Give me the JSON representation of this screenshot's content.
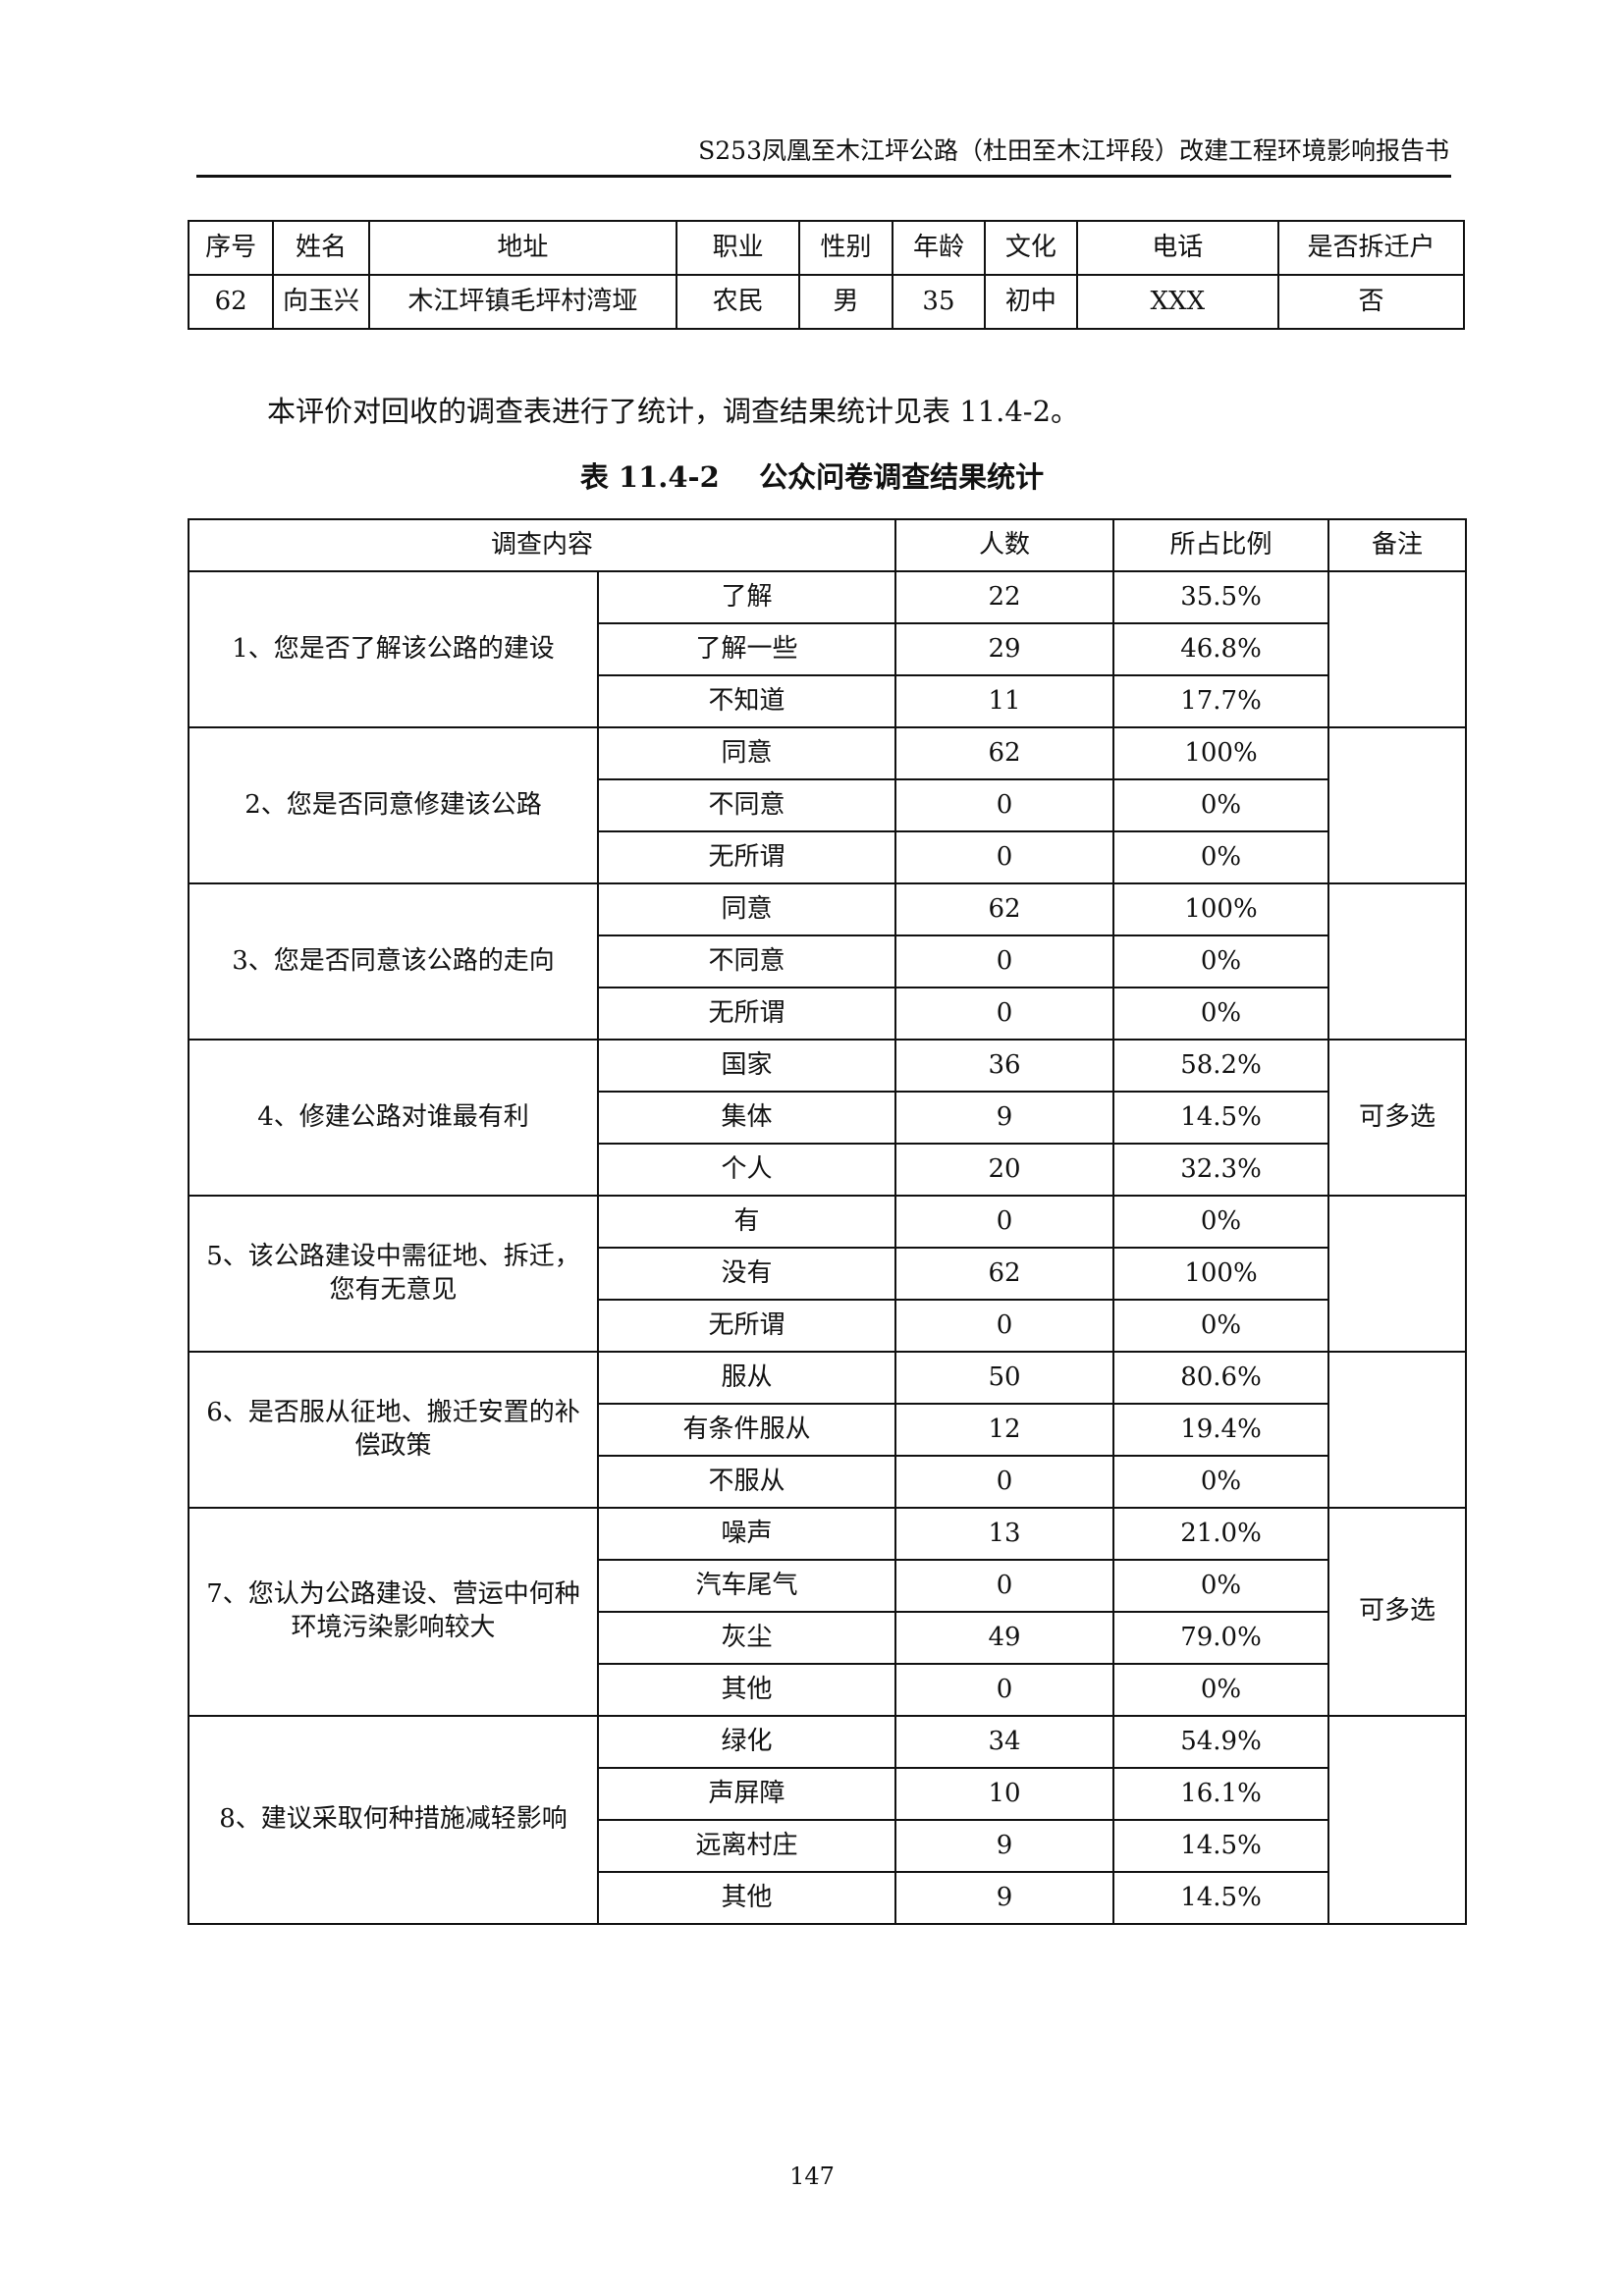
{
  "header": {
    "title": "S253凤凰至木江坪公路（杜田至木江坪段）改建工程环境影响报告书"
  },
  "respondent_table": {
    "columns": [
      "序号",
      "姓名",
      "地址",
      "职业",
      "性别",
      "年龄",
      "文化",
      "电话",
      "是否拆迁户"
    ],
    "rows": [
      [
        "62",
        "向玉兴",
        "木江坪镇毛坪村湾垭",
        "农民",
        "男",
        "35",
        "初中",
        "XXX",
        "否"
      ]
    ]
  },
  "paragraph": "本评价对回收的调查表进行了统计，调查结果统计见表 11.4-2。",
  "caption": "表 11.4-2    公众问卷调查结果统计",
  "survey_table": {
    "columns": [
      "调查内容",
      "人数",
      "所占比例",
      "备注"
    ],
    "questions": [
      {
        "question": "1、您是否了解该公路的建设",
        "note": "",
        "options": [
          [
            "了解",
            "22",
            "35.5%"
          ],
          [
            "了解一些",
            "29",
            "46.8%"
          ],
          [
            "不知道",
            "11",
            "17.7%"
          ]
        ]
      },
      {
        "question": "2、您是否同意修建该公路",
        "note": "",
        "options": [
          [
            "同意",
            "62",
            "100%"
          ],
          [
            "不同意",
            "0",
            "0%"
          ],
          [
            "无所谓",
            "0",
            "0%"
          ]
        ]
      },
      {
        "question": "3、您是否同意该公路的走向",
        "note": "",
        "options": [
          [
            "同意",
            "62",
            "100%"
          ],
          [
            "不同意",
            "0",
            "0%"
          ],
          [
            "无所谓",
            "0",
            "0%"
          ]
        ]
      },
      {
        "question": "4、修建公路对谁最有利",
        "note": "可多选",
        "options": [
          [
            "国家",
            "36",
            "58.2%"
          ],
          [
            "集体",
            "9",
            "14.5%"
          ],
          [
            "个人",
            "20",
            "32.3%"
          ]
        ]
      },
      {
        "question": "5、该公路建设中需征地、拆迁，您有无意见",
        "note": "",
        "options": [
          [
            "有",
            "0",
            "0%"
          ],
          [
            "没有",
            "62",
            "100%"
          ],
          [
            "无所谓",
            "0",
            "0%"
          ]
        ]
      },
      {
        "question": "6、是否服从征地、搬迁安置的补偿政策",
        "note": "",
        "options": [
          [
            "服从",
            "50",
            "80.6%"
          ],
          [
            "有条件服从",
            "12",
            "19.4%"
          ],
          [
            "不服从",
            "0",
            "0%"
          ]
        ]
      },
      {
        "question": "7、您认为公路建设、营运中何种环境污染影响较大",
        "note": "可多选",
        "options": [
          [
            "噪声",
            "13",
            "21.0%"
          ],
          [
            "汽车尾气",
            "0",
            "0%"
          ],
          [
            "灰尘",
            "49",
            "79.0%"
          ],
          [
            "其他",
            "0",
            "0%"
          ]
        ]
      },
      {
        "question": "8、建议采取何种措施减轻影响",
        "note": "",
        "options": [
          [
            "绿化",
            "34",
            "54.9%"
          ],
          [
            "声屏障",
            "10",
            "16.1%"
          ],
          [
            "远离村庄",
            "9",
            "14.5%"
          ],
          [
            "其他",
            "9",
            "14.5%"
          ]
        ]
      }
    ]
  },
  "page_number": "147"
}
